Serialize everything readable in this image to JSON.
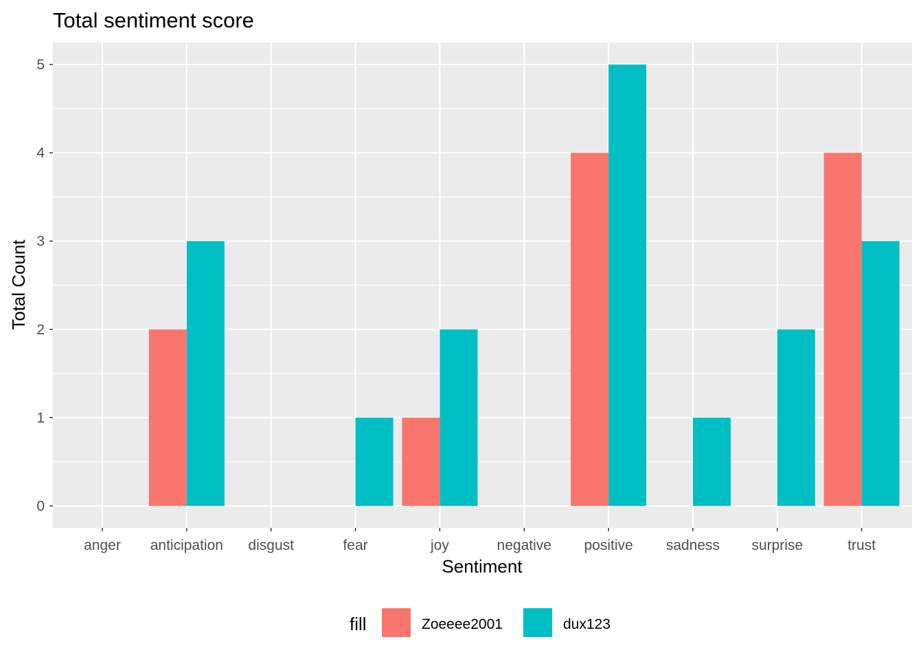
{
  "chart_data": {
    "type": "bar",
    "title": "Total sentiment score",
    "xlabel": "Sentiment",
    "ylabel": "Total Count",
    "categories": [
      "anger",
      "anticipation",
      "disgust",
      "fear",
      "joy",
      "negative",
      "positive",
      "sadness",
      "surprise",
      "trust"
    ],
    "series": [
      {
        "name": "Zoeeee2001",
        "color": "#F8766D",
        "values": [
          0,
          2,
          0,
          0,
          1,
          0,
          4,
          0,
          0,
          4
        ]
      },
      {
        "name": "dux123",
        "color": "#00BFC4",
        "values": [
          0,
          3,
          0,
          1,
          2,
          0,
          5,
          1,
          2,
          3
        ]
      }
    ],
    "ylim": [
      0,
      5
    ],
    "yticks": [
      0,
      1,
      2,
      3,
      4,
      5
    ],
    "grid": true,
    "panel_background": "#EBEBEB",
    "legend": {
      "title": "fill",
      "position": "bottom"
    }
  }
}
